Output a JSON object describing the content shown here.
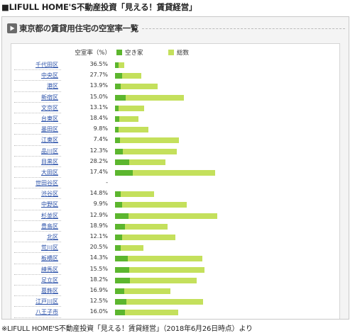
{
  "page_title": "■LIFULL HOME'S不動産投資「見える！賃貸経営」",
  "section": {
    "icon": "play-icon",
    "title": "東京都の賃貸用住宅の空室率一覧"
  },
  "table": {
    "vacancy_rate_header": "空室率（%）",
    "legend": {
      "vacant_label": "空き家",
      "total_label": "総数",
      "vacant_color": "#5cb62e",
      "total_color": "#c4e05c"
    },
    "rows": [
      {
        "ward": "千代田区",
        "rate": "36.5%",
        "total_share": 0.094,
        "vacant_fraction": 0.365
      },
      {
        "ward": "中央区",
        "rate": "27.7%",
        "total_share": 0.263,
        "vacant_fraction": 0.277
      },
      {
        "ward": "港区",
        "rate": "13.9%",
        "total_share": 0.425,
        "vacant_fraction": 0.139
      },
      {
        "ward": "新宿区",
        "rate": "15.0%",
        "total_share": 0.687,
        "vacant_fraction": 0.15
      },
      {
        "ward": "文京区",
        "rate": "13.1%",
        "total_share": 0.288,
        "vacant_fraction": 0.131
      },
      {
        "ward": "台東区",
        "rate": "18.4%",
        "total_share": 0.237,
        "vacant_fraction": 0.184
      },
      {
        "ward": "墨田区",
        "rate": "9.8%",
        "total_share": 0.331,
        "vacant_fraction": 0.098
      },
      {
        "ward": "江東区",
        "rate": "7.4%",
        "total_share": 0.637,
        "vacant_fraction": 0.074
      },
      {
        "ward": "品川区",
        "rate": "12.3%",
        "total_share": 0.619,
        "vacant_fraction": 0.123
      },
      {
        "ward": "目黒区",
        "rate": "28.2%",
        "total_share": 0.5,
        "vacant_fraction": 0.282
      },
      {
        "ward": "大田区",
        "rate": "17.4%",
        "total_share": 1.0,
        "vacant_fraction": 0.174
      },
      {
        "ward": "世田谷区",
        "rate": "-",
        "total_share": 0,
        "vacant_fraction": 0
      },
      {
        "ward": "渋谷区",
        "rate": "14.8%",
        "total_share": 0.388,
        "vacant_fraction": 0.148
      },
      {
        "ward": "中野区",
        "rate": "9.9%",
        "total_share": 0.719,
        "vacant_fraction": 0.099
      },
      {
        "ward": "杉並区",
        "rate": "12.9%",
        "total_share": 1.019,
        "vacant_fraction": 0.129
      },
      {
        "ward": "豊島区",
        "rate": "18.9%",
        "total_share": 0.525,
        "vacant_fraction": 0.189
      },
      {
        "ward": "北区",
        "rate": "12.1%",
        "total_share": 0.606,
        "vacant_fraction": 0.121
      },
      {
        "ward": "荒川区",
        "rate": "20.5%",
        "total_share": 0.281,
        "vacant_fraction": 0.205
      },
      {
        "ward": "板橋区",
        "rate": "14.3%",
        "total_share": 0.875,
        "vacant_fraction": 0.143
      },
      {
        "ward": "練馬区",
        "rate": "15.5%",
        "total_share": 0.894,
        "vacant_fraction": 0.155
      },
      {
        "ward": "足立区",
        "rate": "18.2%",
        "total_share": 0.819,
        "vacant_fraction": 0.182
      },
      {
        "ward": "葛飾区",
        "rate": "16.9%",
        "total_share": 0.55,
        "vacant_fraction": 0.169
      },
      {
        "ward": "江戸川区",
        "rate": "12.5%",
        "total_share": 0.881,
        "vacant_fraction": 0.125
      },
      {
        "ward": "八王子市",
        "rate": "16.0%",
        "total_share": 0.63,
        "vacant_fraction": 0.16
      }
    ]
  },
  "footer": "※LIFULL HOME'S不動産投資「見える！賃貸経営」（2018年6月26日時点）より"
}
